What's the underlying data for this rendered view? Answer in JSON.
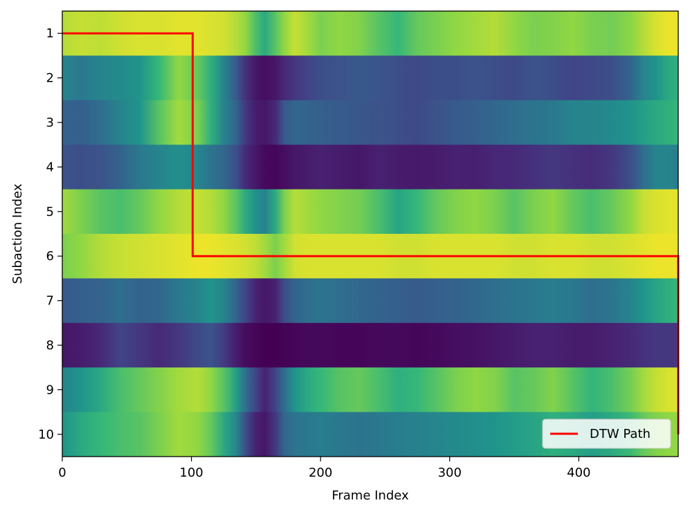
{
  "chart_data": {
    "type": "heatmap",
    "title": "",
    "xlabel": "Frame Index",
    "ylabel": "Subaction Index",
    "xlim": [
      0,
      477
    ],
    "xticks": [
      0,
      100,
      200,
      300,
      400
    ],
    "yticks": [
      1,
      2,
      3,
      4,
      5,
      6,
      7,
      8,
      9,
      10
    ],
    "colormap": "viridis",
    "value_range": [
      0,
      1
    ],
    "x_samples": [
      0,
      15,
      30,
      45,
      60,
      75,
      90,
      105,
      115,
      125,
      135,
      142,
      150,
      157,
      165,
      172,
      180,
      190,
      200,
      215,
      230,
      245,
      260,
      275,
      290,
      305,
      320,
      335,
      350,
      365,
      380,
      395,
      410,
      425,
      440,
      450,
      460,
      470,
      477
    ],
    "rows": [
      {
        "subaction": 1,
        "values": [
          0.92,
          0.94,
          0.93,
          0.95,
          0.96,
          0.96,
          0.97,
          0.97,
          0.96,
          0.95,
          0.92,
          0.88,
          0.78,
          0.7,
          0.8,
          0.88,
          0.94,
          0.9,
          0.85,
          0.88,
          0.86,
          0.8,
          0.75,
          0.82,
          0.85,
          0.88,
          0.9,
          0.92,
          0.88,
          0.85,
          0.86,
          0.88,
          0.85,
          0.84,
          0.87,
          0.92,
          0.96,
          0.98,
          0.98
        ]
      },
      {
        "subaction": 2,
        "values": [
          0.55,
          0.5,
          0.55,
          0.58,
          0.62,
          0.75,
          0.88,
          0.82,
          0.72,
          0.55,
          0.35,
          0.18,
          0.08,
          0.05,
          0.08,
          0.15,
          0.2,
          0.25,
          0.3,
          0.32,
          0.35,
          0.33,
          0.3,
          0.28,
          0.3,
          0.3,
          0.32,
          0.3,
          0.28,
          0.32,
          0.3,
          0.25,
          0.28,
          0.3,
          0.4,
          0.55,
          0.62,
          0.7,
          0.72
        ]
      },
      {
        "subaction": 3,
        "values": [
          0.4,
          0.38,
          0.45,
          0.55,
          0.62,
          0.8,
          0.9,
          0.85,
          0.72,
          0.55,
          0.4,
          0.2,
          0.1,
          0.08,
          0.15,
          0.35,
          0.42,
          0.4,
          0.38,
          0.36,
          0.34,
          0.32,
          0.3,
          0.28,
          0.32,
          0.36,
          0.38,
          0.42,
          0.45,
          0.48,
          0.5,
          0.55,
          0.55,
          0.58,
          0.62,
          0.66,
          0.7,
          0.72,
          0.75
        ]
      },
      {
        "subaction": 4,
        "values": [
          0.32,
          0.3,
          0.32,
          0.4,
          0.5,
          0.55,
          0.6,
          0.55,
          0.48,
          0.42,
          0.3,
          0.15,
          0.08,
          0.03,
          0.02,
          0.05,
          0.08,
          0.1,
          0.12,
          0.1,
          0.08,
          0.12,
          0.1,
          0.09,
          0.1,
          0.12,
          0.11,
          0.14,
          0.15,
          0.18,
          0.2,
          0.18,
          0.16,
          0.2,
          0.3,
          0.45,
          0.55,
          0.55,
          0.52
        ]
      },
      {
        "subaction": 5,
        "values": [
          0.9,
          0.85,
          0.8,
          0.78,
          0.82,
          0.88,
          0.92,
          0.94,
          0.92,
          0.88,
          0.8,
          0.7,
          0.6,
          0.55,
          0.7,
          0.85,
          0.92,
          0.9,
          0.88,
          0.86,
          0.84,
          0.78,
          0.68,
          0.75,
          0.82,
          0.86,
          0.88,
          0.85,
          0.8,
          0.85,
          0.88,
          0.82,
          0.78,
          0.82,
          0.88,
          0.94,
          0.96,
          0.97,
          0.97
        ]
      },
      {
        "subaction": 6,
        "values": [
          0.85,
          0.88,
          0.92,
          0.94,
          0.95,
          0.96,
          0.97,
          0.98,
          0.98,
          0.97,
          0.96,
          0.95,
          0.93,
          0.9,
          0.85,
          0.9,
          0.95,
          0.96,
          0.96,
          0.96,
          0.96,
          0.96,
          0.95,
          0.95,
          0.96,
          0.96,
          0.96,
          0.96,
          0.95,
          0.95,
          0.96,
          0.96,
          0.95,
          0.95,
          0.96,
          0.97,
          0.98,
          0.98,
          0.98
        ]
      },
      {
        "subaction": 7,
        "values": [
          0.35,
          0.38,
          0.4,
          0.45,
          0.4,
          0.42,
          0.5,
          0.55,
          0.62,
          0.55,
          0.4,
          0.25,
          0.12,
          0.08,
          0.12,
          0.3,
          0.4,
          0.45,
          0.48,
          0.45,
          0.42,
          0.4,
          0.38,
          0.36,
          0.38,
          0.4,
          0.42,
          0.45,
          0.48,
          0.5,
          0.52,
          0.5,
          0.45,
          0.48,
          0.55,
          0.62,
          0.68,
          0.72,
          0.75
        ]
      },
      {
        "subaction": 8,
        "values": [
          0.08,
          0.1,
          0.15,
          0.25,
          0.2,
          0.15,
          0.2,
          0.28,
          0.32,
          0.22,
          0.1,
          0.04,
          0.02,
          0.0,
          0.0,
          0.01,
          0.02,
          0.03,
          0.03,
          0.02,
          0.02,
          0.03,
          0.03,
          0.02,
          0.03,
          0.05,
          0.06,
          0.08,
          0.1,
          0.12,
          0.12,
          0.1,
          0.1,
          0.12,
          0.15,
          0.18,
          0.2,
          0.2,
          0.2
        ]
      },
      {
        "subaction": 9,
        "values": [
          0.55,
          0.62,
          0.7,
          0.78,
          0.82,
          0.86,
          0.9,
          0.92,
          0.88,
          0.8,
          0.65,
          0.45,
          0.25,
          0.12,
          0.25,
          0.45,
          0.62,
          0.7,
          0.75,
          0.8,
          0.82,
          0.78,
          0.72,
          0.75,
          0.8,
          0.85,
          0.88,
          0.86,
          0.8,
          0.82,
          0.86,
          0.8,
          0.74,
          0.78,
          0.84,
          0.9,
          0.94,
          0.96,
          0.96
        ]
      },
      {
        "subaction": 10,
        "values": [
          0.62,
          0.7,
          0.75,
          0.78,
          0.8,
          0.85,
          0.9,
          0.88,
          0.82,
          0.7,
          0.55,
          0.3,
          0.12,
          0.08,
          0.2,
          0.42,
          0.48,
          0.5,
          0.52,
          0.5,
          0.48,
          0.5,
          0.52,
          0.54,
          0.56,
          0.58,
          0.6,
          0.62,
          0.65,
          0.68,
          0.72,
          0.7,
          0.66,
          0.7,
          0.76,
          0.82,
          0.86,
          0.88,
          0.88
        ]
      }
    ],
    "series": [
      {
        "name": "DTW Path",
        "color": "#ff0000",
        "points": [
          [
            0,
            1
          ],
          [
            101,
            1
          ],
          [
            101,
            6
          ],
          [
            477,
            6
          ],
          [
            477,
            10
          ]
        ]
      }
    ],
    "legend": {
      "position": "lower-right",
      "entries": [
        "DTW Path"
      ]
    }
  }
}
